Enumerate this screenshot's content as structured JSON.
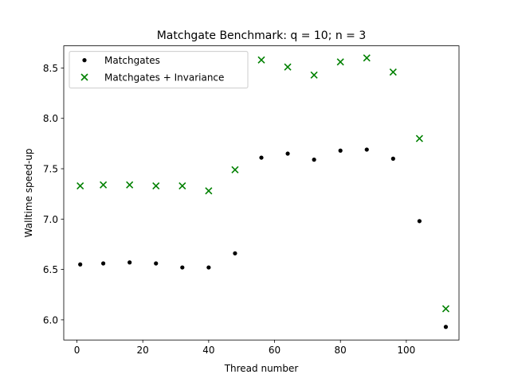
{
  "chart_data": {
    "type": "scatter",
    "title": "Matchgate Benchmark: q = 10; n = 3",
    "xlabel": "Thread number",
    "ylabel": "Walltime speed-up",
    "xlim": [
      -4,
      116
    ],
    "ylim": [
      5.8,
      8.72
    ],
    "xticks": [
      0,
      20,
      40,
      60,
      80,
      100
    ],
    "yticks": [
      6.0,
      6.5,
      7.0,
      7.5,
      8.0,
      8.5
    ],
    "ytick_labels": [
      "6.0",
      "6.5",
      "7.0",
      "7.5",
      "8.0",
      "8.5"
    ],
    "grid": false,
    "legend_position": "top-left",
    "x": [
      1,
      8,
      16,
      24,
      32,
      40,
      48,
      56,
      64,
      72,
      80,
      88,
      96,
      104,
      112
    ],
    "series": [
      {
        "name": "Matchgates",
        "marker": "dot",
        "color": "#000000",
        "values": [
          6.55,
          6.56,
          6.57,
          6.56,
          6.52,
          6.52,
          6.66,
          7.61,
          7.65,
          7.59,
          7.68,
          7.69,
          7.6,
          6.98,
          5.93
        ]
      },
      {
        "name": "Matchgates + Invariance",
        "marker": "x",
        "color": "#008000",
        "values": [
          7.33,
          7.34,
          7.34,
          7.33,
          7.33,
          7.28,
          7.49,
          8.58,
          8.51,
          8.43,
          8.56,
          8.6,
          8.46,
          7.8,
          6.11
        ]
      }
    ]
  }
}
